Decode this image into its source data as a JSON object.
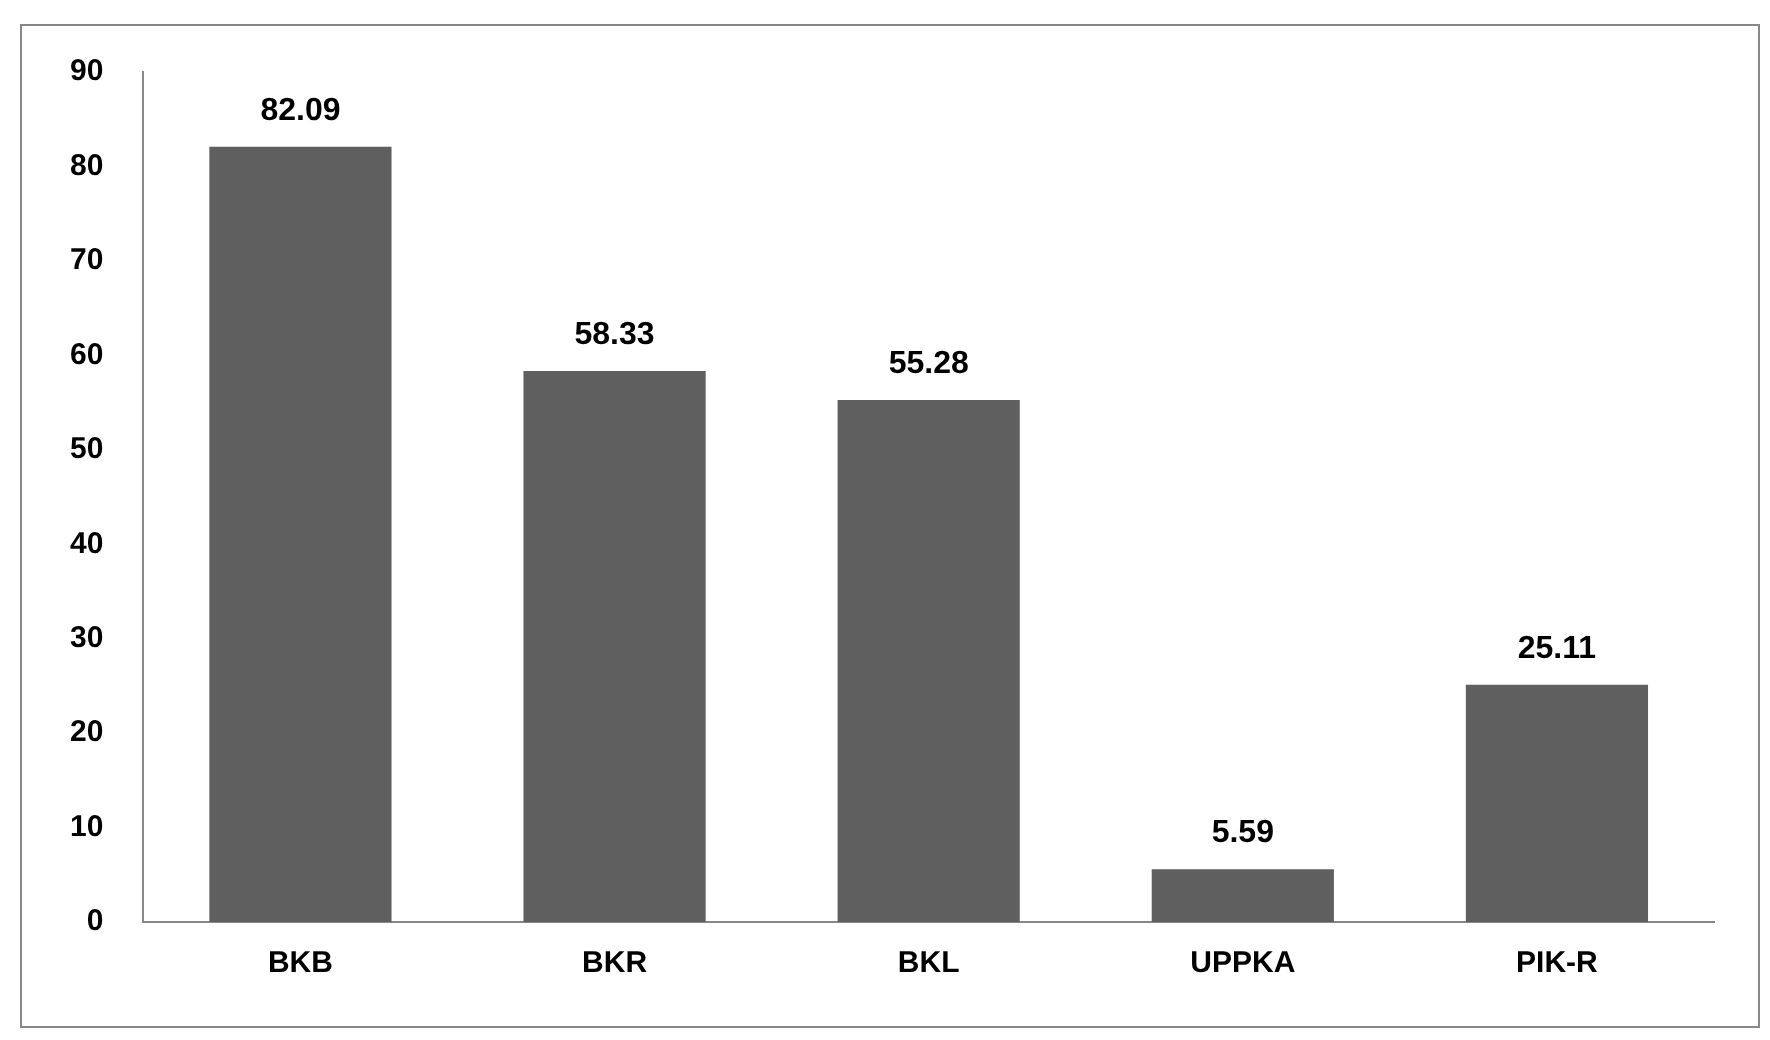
{
  "chart_data": {
    "type": "bar",
    "categories": [
      "BKB",
      "BKR",
      "BKL",
      "UPPKA",
      "PIK-R"
    ],
    "values": [
      82.09,
      58.33,
      55.28,
      5.59,
      25.11
    ],
    "color": "#5f5f5f",
    "ylim": [
      0,
      90
    ],
    "yticks": [
      0,
      10,
      20,
      30,
      40,
      50,
      60,
      70,
      80,
      90
    ],
    "grid": false,
    "legend": false,
    "data_labels": true
  }
}
